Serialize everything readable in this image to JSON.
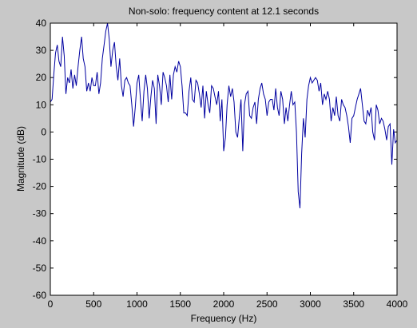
{
  "chart_data": {
    "type": "line",
    "title": "Non-solo: frequency content at 12.1 seconds",
    "xlabel": "Frequency (Hz)",
    "ylabel": "Magnitude (dB)",
    "xlim": [
      0,
      4000
    ],
    "ylim": [
      -60,
      40
    ],
    "xticks": [
      0,
      500,
      1000,
      1500,
      2000,
      2500,
      3000,
      3500,
      4000
    ],
    "yticks": [
      -60,
      -50,
      -40,
      -30,
      -20,
      -10,
      0,
      10,
      20,
      30,
      40
    ],
    "grid": false,
    "line_color": "#0000a0",
    "background_color": "#c8c8c8",
    "plot_background_color": "#ffffff",
    "series": [
      {
        "x": [
          0,
          20,
          40,
          60,
          80,
          100,
          120,
          140,
          160,
          180,
          200,
          220,
          240,
          260,
          280,
          300,
          320,
          340,
          360,
          380,
          400,
          420,
          440,
          460,
          480,
          500,
          520,
          540,
          560,
          580,
          600,
          620,
          640,
          660,
          680,
          700,
          720,
          740,
          760,
          780,
          800,
          820,
          840,
          860,
          880,
          900,
          920,
          940,
          960,
          980,
          1000,
          1020,
          1040,
          1060,
          1080,
          1100,
          1120,
          1140,
          1160,
          1180,
          1200,
          1220,
          1240,
          1260,
          1280,
          1300,
          1320,
          1340,
          1360,
          1380,
          1400,
          1420,
          1440,
          1460,
          1480,
          1500,
          1520,
          1540,
          1560,
          1580,
          1600,
          1620,
          1640,
          1660,
          1680,
          1700,
          1720,
          1740,
          1760,
          1780,
          1800,
          1820,
          1840,
          1860,
          1880,
          1900,
          1920,
          1940,
          1960,
          1980,
          2000,
          2020,
          2040,
          2060,
          2080,
          2100,
          2120,
          2140,
          2160,
          2180,
          2200,
          2220,
          2240,
          2260,
          2280,
          2300,
          2320,
          2340,
          2360,
          2380,
          2400,
          2420,
          2440,
          2460,
          2480,
          2500,
          2520,
          2540,
          2560,
          2580,
          2600,
          2620,
          2640,
          2660,
          2680,
          2700,
          2720,
          2740,
          2760,
          2780,
          2800,
          2820,
          2840,
          2860,
          2880,
          2900,
          2920,
          2940,
          2960,
          2980,
          3000,
          3020,
          3040,
          3060,
          3080,
          3100,
          3120,
          3140,
          3160,
          3180,
          3200,
          3220,
          3240,
          3260,
          3280,
          3300,
          3320,
          3340,
          3360,
          3380,
          3400,
          3420,
          3440,
          3460,
          3480,
          3500,
          3520,
          3540,
          3560,
          3580,
          3600,
          3620,
          3640,
          3660,
          3680,
          3700,
          3720,
          3740,
          3760,
          3780,
          3800,
          3820,
          3840,
          3860,
          3880,
          3900,
          3920,
          3940,
          3960,
          3980,
          4000
        ],
        "values": [
          11,
          12,
          21,
          29,
          32,
          26,
          24,
          35,
          28,
          14,
          20,
          18,
          23,
          16,
          21,
          17,
          24,
          30,
          35,
          27,
          24,
          15,
          18,
          15,
          20,
          17,
          17,
          22,
          14,
          18,
          27,
          32,
          37,
          40,
          34,
          24,
          30,
          33,
          24,
          19,
          27,
          17,
          13,
          19,
          20,
          18,
          17,
          10,
          2,
          9,
          18,
          21,
          12,
          4,
          15,
          21,
          16,
          5,
          13,
          19,
          16,
          3,
          21,
          17,
          10,
          22,
          20,
          17,
          11,
          21,
          12,
          21,
          24,
          22,
          26,
          24,
          17,
          7,
          7,
          6,
          15,
          20,
          12,
          11,
          19,
          18,
          14,
          9,
          17,
          5,
          15,
          10,
          7,
          17,
          16,
          13,
          10,
          15,
          4,
          12,
          -7,
          -2,
          10,
          17,
          13,
          16,
          11,
          0,
          -2,
          5,
          12,
          -7,
          10,
          14,
          15,
          6,
          5,
          9,
          11,
          3,
          12,
          16,
          18,
          14,
          12,
          6,
          11,
          12,
          12,
          8,
          16,
          9,
          6,
          15,
          12,
          3,
          9,
          4,
          10,
          15,
          10,
          11,
          0,
          -22,
          -28,
          -8,
          5,
          -2,
          12,
          17,
          20,
          18,
          19,
          20,
          19,
          15,
          18,
          10,
          14,
          12,
          15,
          12,
          4,
          9,
          6,
          13,
          6,
          4,
          12,
          10,
          9,
          6,
          2,
          -4,
          5,
          6,
          9,
          12,
          14,
          16,
          10,
          4,
          3,
          8,
          6,
          9,
          0,
          -3,
          10,
          8,
          3,
          5,
          4,
          1,
          -3,
          2,
          3,
          -12,
          1,
          -4,
          -3
        ]
      }
    ]
  }
}
